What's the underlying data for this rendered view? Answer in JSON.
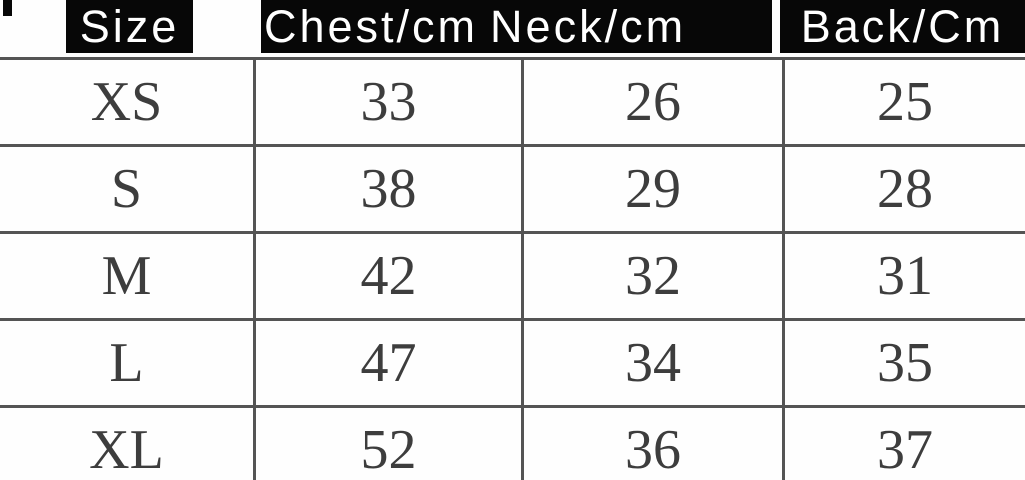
{
  "size_chart": {
    "columns": [
      {
        "id": "size",
        "label": "Size"
      },
      {
        "id": "chest",
        "label": "Chest/cm"
      },
      {
        "id": "neck",
        "label": "Neck/cm"
      },
      {
        "id": "back",
        "label": "Back/Cm"
      }
    ],
    "rows": [
      {
        "size": "XS",
        "chest": "33",
        "neck": "26",
        "back": "25"
      },
      {
        "size": "S",
        "chest": "38",
        "neck": "29",
        "back": "28"
      },
      {
        "size": "M",
        "chest": "42",
        "neck": "32",
        "back": "31"
      },
      {
        "size": "L",
        "chest": "47",
        "neck": "34",
        "back": "35"
      },
      {
        "size": "XL",
        "chest": "52",
        "neck": "36",
        "back": "37"
      }
    ]
  },
  "colors": {
    "background": "#fefefe",
    "header_bg": "#070707",
    "header_text": "#ffffff",
    "grid_line": "#545454",
    "body_text": "#3d3d3d"
  }
}
